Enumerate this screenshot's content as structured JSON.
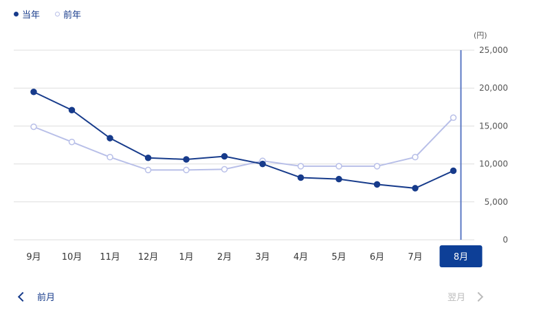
{
  "legend": {
    "current_label": "当年",
    "previous_label": "前年"
  },
  "colors": {
    "current": "#173b8b",
    "previous": "#b8bfe8",
    "selected_bg": "#0d3f97",
    "grid": "#dddddd",
    "nav_active": "#173b8b",
    "nav_disabled": "#bbbbbb"
  },
  "nav": {
    "prev_label": "前月",
    "next_label": "翌月"
  },
  "chart_data": {
    "type": "line",
    "categories": [
      "9月",
      "10月",
      "11月",
      "12月",
      "1月",
      "2月",
      "3月",
      "4月",
      "5月",
      "6月",
      "7月",
      "8月"
    ],
    "series": [
      {
        "name": "当年",
        "values": [
          19500,
          17100,
          13400,
          10800,
          10600,
          11000,
          10000,
          8200,
          8000,
          7300,
          6800,
          9100
        ]
      },
      {
        "name": "前年",
        "values": [
          14900,
          12900,
          10900,
          9200,
          9200,
          9300,
          10400,
          9700,
          9700,
          9700,
          10900,
          16100
        ]
      }
    ],
    "unit": "(円)",
    "ylim": [
      0,
      25000
    ],
    "yticks": [
      "25,000",
      "20,000",
      "15,000",
      "10,000",
      "5,000",
      "0"
    ],
    "selected_category": "8月",
    "grid": true,
    "legend_position": "top-left"
  }
}
